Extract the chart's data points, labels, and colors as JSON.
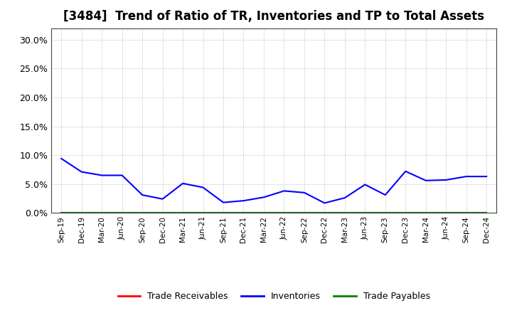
{
  "title": "[3484]  Trend of Ratio of TR, Inventories and TP to Total Assets",
  "x_labels": [
    "Sep-19",
    "Dec-19",
    "Mar-20",
    "Jun-20",
    "Sep-20",
    "Dec-20",
    "Mar-21",
    "Jun-21",
    "Sep-21",
    "Dec-21",
    "Mar-22",
    "Jun-22",
    "Sep-22",
    "Dec-22",
    "Mar-23",
    "Jun-23",
    "Sep-23",
    "Dec-23",
    "Mar-24",
    "Jun-24",
    "Sep-24",
    "Dec-24"
  ],
  "trade_receivables": [
    0.0,
    0.0,
    0.0,
    0.0,
    0.0,
    0.0,
    0.0,
    0.0,
    0.0,
    0.0,
    0.0,
    0.0,
    0.0,
    0.0,
    0.0,
    0.0,
    0.0,
    0.0,
    0.0,
    0.0,
    0.0,
    0.0
  ],
  "inventories": [
    0.094,
    0.071,
    0.065,
    0.065,
    0.031,
    0.024,
    0.051,
    0.044,
    0.018,
    0.021,
    0.027,
    0.038,
    0.035,
    0.017,
    0.026,
    0.049,
    0.031,
    0.072,
    0.056,
    0.057,
    0.063,
    0.063
  ],
  "trade_payables": [
    0.0,
    0.0,
    0.0,
    0.0,
    0.0,
    0.0,
    0.0,
    0.0,
    0.0,
    0.0,
    0.0,
    0.0,
    0.0,
    0.0,
    0.0,
    0.0,
    0.0,
    0.0,
    0.0,
    0.0,
    0.0,
    0.0
  ],
  "line_color_tr": "#ff0000",
  "line_color_inv": "#0000ff",
  "line_color_tp": "#008000",
  "ylim": [
    0.0,
    0.32
  ],
  "yticks": [
    0.0,
    0.05,
    0.1,
    0.15,
    0.2,
    0.25,
    0.3
  ],
  "background_color": "#ffffff",
  "grid_color": "#999999",
  "title_fontsize": 12,
  "tick_fontsize": 9,
  "xtick_fontsize": 7.5,
  "legend_labels": [
    "Trade Receivables",
    "Inventories",
    "Trade Payables"
  ],
  "legend_fontsize": 9
}
